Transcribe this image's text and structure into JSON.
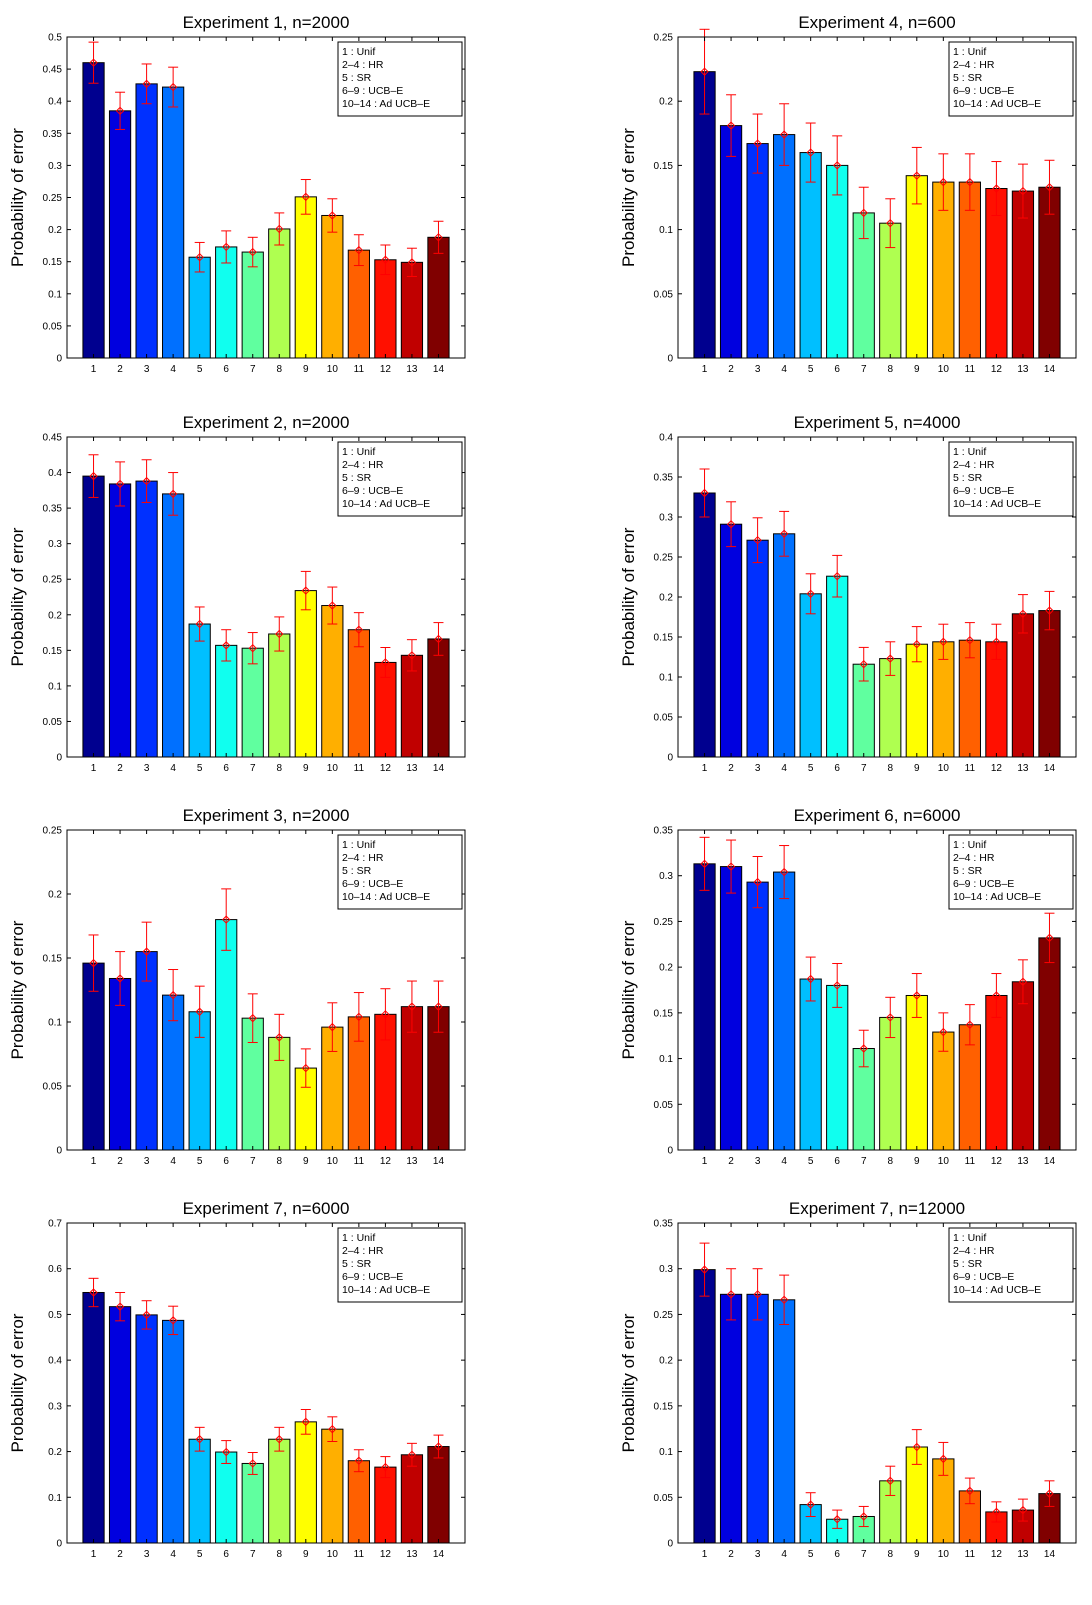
{
  "figure": {
    "legend_lines": [
      "1 : Unif",
      "2–4 : HR",
      "5 : SR",
      "6–9 : UCB–E",
      "10–14 : Ad UCB–E"
    ],
    "bar_colors": [
      "#00008f",
      "#0000df",
      "#0030ff",
      "#0070ff",
      "#00bfff",
      "#10ffef",
      "#60ff9f",
      "#afff50",
      "#ffff00",
      "#ffaf00",
      "#ff6000",
      "#ff1000",
      "#c00000",
      "#800000"
    ],
    "error_color": "#ff0000"
  },
  "chart_data": [
    {
      "type": "bar",
      "title": "Experiment 1, n=2000",
      "xlabel": "",
      "ylabel": "Probability of error",
      "categories": [
        "1",
        "2",
        "3",
        "4",
        "5",
        "6",
        "7",
        "8",
        "9",
        "10",
        "11",
        "12",
        "13",
        "14"
      ],
      "values": [
        0.46,
        0.385,
        0.427,
        0.422,
        0.157,
        0.173,
        0.165,
        0.201,
        0.251,
        0.222,
        0.168,
        0.153,
        0.149,
        0.188
      ],
      "errors": [
        0.032,
        0.029,
        0.031,
        0.031,
        0.023,
        0.025,
        0.023,
        0.025,
        0.027,
        0.026,
        0.024,
        0.023,
        0.022,
        0.025
      ],
      "ylim": [
        0,
        0.5
      ],
      "yticks": [
        "0",
        "0.05",
        "0.1",
        "0.15",
        "0.2",
        "0.25",
        "0.3",
        "0.35",
        "0.4",
        "0.45",
        "0.5"
      ],
      "legend": "top-right"
    },
    {
      "type": "bar",
      "title": "Experiment 4, n=600",
      "xlabel": "",
      "ylabel": "Probability of error",
      "categories": [
        "1",
        "2",
        "3",
        "4",
        "5",
        "6",
        "7",
        "8",
        "9",
        "10",
        "11",
        "12",
        "13",
        "14"
      ],
      "values": [
        0.223,
        0.181,
        0.167,
        0.174,
        0.16,
        0.15,
        0.113,
        0.105,
        0.142,
        0.137,
        0.137,
        0.132,
        0.13,
        0.133
      ],
      "errors": [
        0.033,
        0.024,
        0.023,
        0.024,
        0.023,
        0.023,
        0.02,
        0.019,
        0.022,
        0.022,
        0.022,
        0.021,
        0.021,
        0.021
      ],
      "ylim": [
        0,
        0.25
      ],
      "yticks": [
        "0",
        "0.05",
        "0.1",
        "0.15",
        "0.2",
        "0.25"
      ],
      "legend": "top-right"
    },
    {
      "type": "bar",
      "title": "Experiment 2, n=2000",
      "xlabel": "",
      "ylabel": "Probability of error",
      "categories": [
        "1",
        "2",
        "3",
        "4",
        "5",
        "6",
        "7",
        "8",
        "9",
        "10",
        "11",
        "12",
        "13",
        "14"
      ],
      "values": [
        0.395,
        0.384,
        0.388,
        0.37,
        0.187,
        0.157,
        0.153,
        0.173,
        0.234,
        0.213,
        0.179,
        0.133,
        0.143,
        0.166
      ],
      "errors": [
        0.03,
        0.031,
        0.03,
        0.03,
        0.024,
        0.022,
        0.022,
        0.024,
        0.027,
        0.026,
        0.024,
        0.021,
        0.022,
        0.023
      ],
      "ylim": [
        0,
        0.45
      ],
      "yticks": [
        "0",
        "0.05",
        "0.1",
        "0.15",
        "0.2",
        "0.25",
        "0.3",
        "0.35",
        "0.4",
        "0.45"
      ],
      "legend": "top-right"
    },
    {
      "type": "bar",
      "title": "Experiment 5, n=4000",
      "xlabel": "",
      "ylabel": "Probability of error",
      "categories": [
        "1",
        "2",
        "3",
        "4",
        "5",
        "6",
        "7",
        "8",
        "9",
        "10",
        "11",
        "12",
        "13",
        "14"
      ],
      "values": [
        0.33,
        0.291,
        0.271,
        0.279,
        0.204,
        0.226,
        0.116,
        0.123,
        0.141,
        0.144,
        0.146,
        0.144,
        0.179,
        0.183
      ],
      "errors": [
        0.03,
        0.028,
        0.028,
        0.028,
        0.025,
        0.026,
        0.021,
        0.021,
        0.022,
        0.022,
        0.022,
        0.022,
        0.024,
        0.024
      ],
      "ylim": [
        0,
        0.4
      ],
      "yticks": [
        "0",
        "0.05",
        "0.1",
        "0.15",
        "0.2",
        "0.25",
        "0.3",
        "0.35",
        "0.4"
      ],
      "legend": "top-right"
    },
    {
      "type": "bar",
      "title": "Experiment 3, n=2000",
      "xlabel": "",
      "ylabel": "Probability of error",
      "categories": [
        "1",
        "2",
        "3",
        "4",
        "5",
        "6",
        "7",
        "8",
        "9",
        "10",
        "11",
        "12",
        "13",
        "14"
      ],
      "values": [
        0.146,
        0.134,
        0.155,
        0.121,
        0.108,
        0.18,
        0.103,
        0.088,
        0.064,
        0.096,
        0.104,
        0.106,
        0.112,
        0.112
      ],
      "errors": [
        0.022,
        0.021,
        0.023,
        0.02,
        0.02,
        0.024,
        0.019,
        0.018,
        0.015,
        0.019,
        0.019,
        0.02,
        0.02,
        0.02
      ],
      "ylim": [
        0,
        0.25
      ],
      "yticks": [
        "0",
        "0.05",
        "0.1",
        "0.15",
        "0.2",
        "0.25"
      ],
      "legend": "top-right"
    },
    {
      "type": "bar",
      "title": "Experiment 6, n=6000",
      "xlabel": "",
      "ylabel": "Probability of error",
      "categories": [
        "1",
        "2",
        "3",
        "4",
        "5",
        "6",
        "7",
        "8",
        "9",
        "10",
        "11",
        "12",
        "13",
        "14"
      ],
      "values": [
        0.313,
        0.31,
        0.293,
        0.304,
        0.187,
        0.18,
        0.111,
        0.145,
        0.169,
        0.129,
        0.137,
        0.169,
        0.184,
        0.232
      ],
      "errors": [
        0.029,
        0.029,
        0.028,
        0.029,
        0.024,
        0.024,
        0.02,
        0.022,
        0.024,
        0.021,
        0.022,
        0.024,
        0.024,
        0.027
      ],
      "ylim": [
        0,
        0.35
      ],
      "yticks": [
        "0",
        "0.05",
        "0.1",
        "0.15",
        "0.2",
        "0.25",
        "0.3",
        "0.35"
      ],
      "legend": "top-right"
    },
    {
      "type": "bar",
      "title": "Experiment 7, n=6000",
      "xlabel": "",
      "ylabel": "Probability of error",
      "categories": [
        "1",
        "2",
        "3",
        "4",
        "5",
        "6",
        "7",
        "8",
        "9",
        "10",
        "11",
        "12",
        "13",
        "14"
      ],
      "values": [
        0.548,
        0.517,
        0.499,
        0.487,
        0.227,
        0.199,
        0.174,
        0.227,
        0.265,
        0.249,
        0.18,
        0.166,
        0.193,
        0.211
      ],
      "errors": [
        0.031,
        0.031,
        0.031,
        0.031,
        0.026,
        0.025,
        0.024,
        0.026,
        0.027,
        0.027,
        0.024,
        0.023,
        0.025,
        0.025
      ],
      "ylim": [
        0,
        0.7
      ],
      "yticks": [
        "0",
        "0.1",
        "0.2",
        "0.3",
        "0.4",
        "0.5",
        "0.6",
        "0.7"
      ],
      "legend": "top-right"
    },
    {
      "type": "bar",
      "title": "Experiment 7, n=12000",
      "xlabel": "",
      "ylabel": "Probability of error",
      "categories": [
        "1",
        "2",
        "3",
        "4",
        "5",
        "6",
        "7",
        "8",
        "9",
        "10",
        "11",
        "12",
        "13",
        "14"
      ],
      "values": [
        0.299,
        0.272,
        0.272,
        0.266,
        0.042,
        0.026,
        0.029,
        0.068,
        0.105,
        0.092,
        0.057,
        0.034,
        0.036,
        0.054
      ],
      "errors": [
        0.029,
        0.028,
        0.028,
        0.027,
        0.013,
        0.01,
        0.011,
        0.016,
        0.019,
        0.018,
        0.014,
        0.011,
        0.012,
        0.014
      ],
      "ylim": [
        0,
        0.35
      ],
      "yticks": [
        "0",
        "0.05",
        "0.1",
        "0.15",
        "0.2",
        "0.25",
        "0.3",
        "0.35"
      ],
      "legend": "top-right"
    }
  ]
}
